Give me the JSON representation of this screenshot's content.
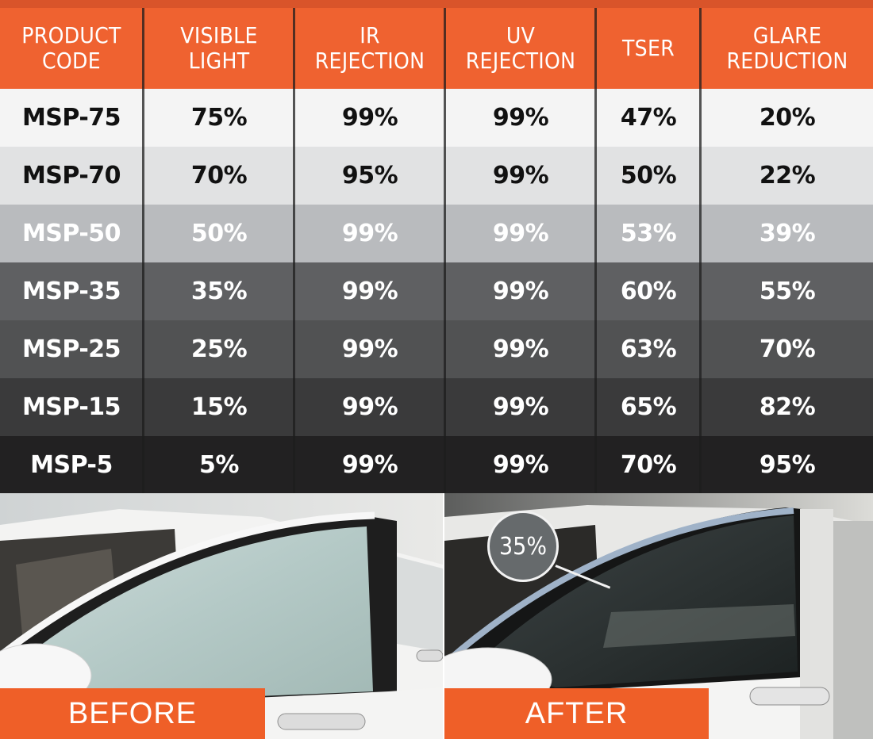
{
  "table": {
    "headers": [
      "PRODUCT\nCODE",
      "VISIBLE\nLIGHT",
      "IR\nREJECTION",
      "UV\nREJECTION",
      "TSER",
      "GLARE\nREDUCTION"
    ],
    "rows": [
      [
        "MSP-75",
        "75%",
        "99%",
        "99%",
        "47%",
        "20%"
      ],
      [
        "MSP-70",
        "70%",
        "95%",
        "99%",
        "50%",
        "22%"
      ],
      [
        "MSP-50",
        "50%",
        "99%",
        "99%",
        "53%",
        "39%"
      ],
      [
        "MSP-35",
        "35%",
        "99%",
        "99%",
        "60%",
        "55%"
      ],
      [
        "MSP-25",
        "25%",
        "99%",
        "99%",
        "63%",
        "70%"
      ],
      [
        "MSP-15",
        "15%",
        "99%",
        "99%",
        "65%",
        "82%"
      ],
      [
        "MSP-5",
        "5%",
        "99%",
        "99%",
        "70%",
        "95%"
      ]
    ],
    "row_colors": [
      "#f4f4f4",
      "#e1e2e3",
      "#b9bbbe",
      "#5f6062",
      "#515253",
      "#3a3a3b",
      "#222122"
    ],
    "text_colors": [
      "#111111",
      "#111111",
      "#ffffff",
      "#ffffff",
      "#ffffff",
      "#ffffff",
      "#ffffff"
    ],
    "header_color": "#ef6230"
  },
  "before_label": "BEFORE",
  "after_label": "AFTER",
  "after_badge": "35%",
  "accent_color": "#ef5f28"
}
